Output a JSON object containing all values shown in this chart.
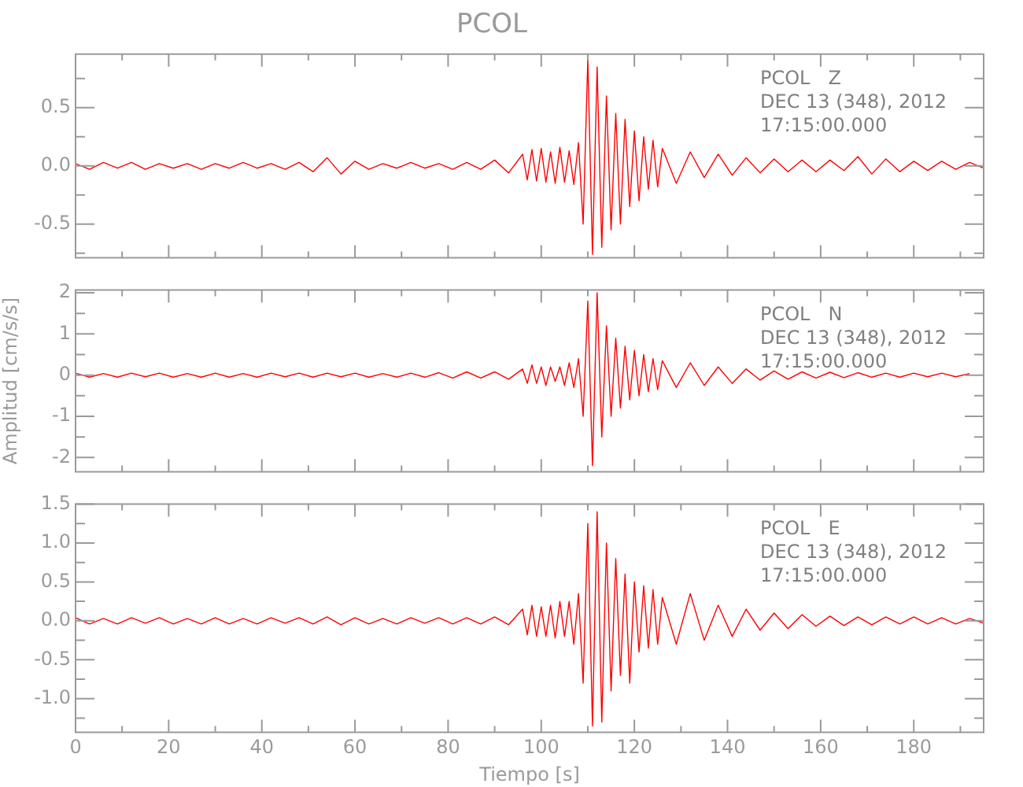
{
  "chart_data": [
    {
      "type": "line",
      "title": "PCOL",
      "tick_labels": "y",
      "annotations": [
        "PCOL   Z",
        "DEC 13 (348), 2012",
        "17:15:00.000"
      ],
      "x": [
        0,
        3,
        6,
        9,
        12,
        15,
        18,
        21,
        24,
        27,
        30,
        33,
        36,
        39,
        42,
        45,
        48,
        51,
        54,
        57,
        60,
        63,
        66,
        69,
        72,
        75,
        78,
        81,
        84,
        87,
        90,
        93,
        96,
        97,
        98,
        99,
        100,
        101,
        102,
        103,
        104,
        105,
        106,
        107,
        108,
        109,
        110,
        111,
        112,
        113,
        114,
        115,
        116,
        117,
        118,
        119,
        120,
        121,
        122,
        123,
        124,
        125,
        126,
        129,
        132,
        135,
        138,
        141,
        144,
        147,
        150,
        153,
        156,
        159,
        162,
        165,
        168,
        171,
        174,
        177,
        180,
        183,
        186,
        189,
        192,
        195
      ],
      "series": [
        {
          "color": "#ff0000",
          "values": [
            0.02,
            -0.03,
            0.03,
            -0.02,
            0.03,
            -0.03,
            0.02,
            -0.02,
            0.02,
            -0.03,
            0.02,
            -0.02,
            0.03,
            -0.02,
            0.02,
            -0.03,
            0.03,
            -0.05,
            0.07,
            -0.07,
            0.04,
            -0.03,
            0.02,
            -0.02,
            0.03,
            -0.02,
            0.02,
            -0.03,
            0.03,
            -0.03,
            0.05,
            -0.06,
            0.1,
            -0.12,
            0.14,
            -0.13,
            0.15,
            -0.14,
            0.12,
            -0.15,
            0.16,
            -0.14,
            0.13,
            -0.16,
            0.2,
            -0.5,
            0.92,
            -0.76,
            0.85,
            -0.7,
            0.6,
            -0.55,
            0.45,
            -0.5,
            0.4,
            -0.35,
            0.3,
            -0.3,
            0.25,
            -0.2,
            0.22,
            -0.18,
            0.15,
            -0.15,
            0.12,
            -0.1,
            0.1,
            -0.08,
            0.07,
            -0.06,
            0.06,
            -0.05,
            0.05,
            -0.05,
            0.05,
            -0.04,
            0.08,
            -0.07,
            0.06,
            -0.05,
            0.04,
            -0.04,
            0.04,
            -0.03,
            0.03,
            -0.02
          ]
        }
      ],
      "xlim": [
        0,
        195
      ],
      "xticks": [
        0,
        {
          "value": 10,
          "label": null
        },
        20,
        {
          "value": 30,
          "label": null
        },
        40,
        {
          "value": 50,
          "label": null
        },
        60,
        {
          "value": 70,
          "label": null
        },
        80,
        {
          "value": 90,
          "label": null
        },
        100,
        {
          "value": 110,
          "label": null
        },
        120,
        {
          "value": 130,
          "label": null
        },
        140,
        {
          "value": 150,
          "label": null
        },
        160,
        {
          "value": 170,
          "label": null
        },
        180,
        {
          "value": 190,
          "label": null
        }
      ],
      "ylim": [
        -0.79,
        0.96
      ],
      "yticks": [
        {
          "value": -0.75,
          "label": null
        },
        -0.5,
        {
          "value": -0.25,
          "label": null
        },
        {
          "value": 0,
          "label": "0.0"
        },
        {
          "value": 0.25,
          "label": null
        },
        0.5,
        {
          "value": 0.75,
          "label": null
        }
      ]
    },
    {
      "type": "line",
      "ylabel": "Amplitud [cm/s/s]",
      "tick_labels": "y",
      "annotations": [
        "PCOL   N",
        "DEC 13 (348), 2012",
        "17:15:00.000"
      ],
      "x": [
        0,
        3,
        6,
        9,
        12,
        15,
        18,
        21,
        24,
        27,
        30,
        33,
        36,
        39,
        42,
        45,
        48,
        51,
        54,
        57,
        60,
        63,
        66,
        69,
        72,
        75,
        78,
        81,
        84,
        87,
        90,
        93,
        96,
        97,
        98,
        99,
        100,
        101,
        102,
        103,
        104,
        105,
        106,
        107,
        108,
        109,
        110,
        111,
        112,
        113,
        114,
        115,
        116,
        117,
        118,
        119,
        120,
        121,
        122,
        123,
        124,
        125,
        126,
        129,
        132,
        135,
        138,
        141,
        144,
        147,
        150,
        153,
        156,
        159,
        162,
        165,
        168,
        171,
        174,
        177,
        180,
        183,
        186,
        189,
        192
      ],
      "series": [
        {
          "color": "#ff0000",
          "values": [
            0.05,
            -0.05,
            0.04,
            -0.05,
            0.05,
            -0.04,
            0.05,
            -0.05,
            0.04,
            -0.05,
            0.05,
            -0.05,
            0.04,
            -0.05,
            0.05,
            -0.04,
            0.05,
            -0.05,
            0.05,
            -0.04,
            0.05,
            -0.05,
            0.04,
            -0.05,
            0.05,
            -0.05,
            0.06,
            -0.07,
            0.08,
            -0.07,
            0.08,
            -0.1,
            0.15,
            -0.2,
            0.25,
            -0.2,
            0.2,
            -0.25,
            0.2,
            -0.15,
            0.2,
            -0.25,
            0.3,
            -0.3,
            0.4,
            -1.0,
            1.8,
            -2.2,
            2.0,
            -1.5,
            1.2,
            -1.0,
            0.9,
            -0.8,
            0.7,
            -0.6,
            0.6,
            -0.5,
            0.5,
            -0.4,
            0.4,
            -0.35,
            0.35,
            -0.3,
            0.3,
            -0.25,
            0.2,
            -0.2,
            0.15,
            -0.12,
            0.1,
            -0.1,
            0.08,
            -0.07,
            0.07,
            -0.06,
            0.06,
            -0.05,
            0.05,
            -0.05,
            0.05,
            -0.04,
            0.05,
            -0.04,
            0.04
          ]
        }
      ],
      "xlim": [
        0,
        195
      ],
      "xticks": [
        0,
        {
          "value": 10,
          "label": null
        },
        20,
        {
          "value": 30,
          "label": null
        },
        40,
        {
          "value": 50,
          "label": null
        },
        60,
        {
          "value": 70,
          "label": null
        },
        80,
        {
          "value": 90,
          "label": null
        },
        100,
        {
          "value": 110,
          "label": null
        },
        120,
        {
          "value": 130,
          "label": null
        },
        140,
        {
          "value": 150,
          "label": null
        },
        160,
        {
          "value": 170,
          "label": null
        },
        180,
        {
          "value": 190,
          "label": null
        }
      ],
      "ylim": [
        -2.35,
        2.07
      ],
      "yticks": [
        -2,
        {
          "value": -1.5,
          "label": null
        },
        -1,
        {
          "value": -0.5,
          "label": null
        },
        0,
        {
          "value": 0.5,
          "label": null
        },
        1,
        {
          "value": 1.5,
          "label": null
        },
        2
      ]
    },
    {
      "type": "line",
      "xlabel": "Tiempo [s]",
      "annotations": [
        "PCOL   E",
        "DEC 13 (348), 2012",
        "17:15:00.000"
      ],
      "x": [
        0,
        3,
        6,
        9,
        12,
        15,
        18,
        21,
        24,
        27,
        30,
        33,
        36,
        39,
        42,
        45,
        48,
        51,
        54,
        57,
        60,
        63,
        66,
        69,
        72,
        75,
        78,
        81,
        84,
        87,
        90,
        93,
        96,
        97,
        98,
        99,
        100,
        101,
        102,
        103,
        104,
        105,
        106,
        107,
        108,
        109,
        110,
        111,
        112,
        113,
        114,
        115,
        116,
        117,
        118,
        119,
        120,
        121,
        122,
        123,
        124,
        125,
        126,
        129,
        132,
        135,
        138,
        141,
        144,
        147,
        150,
        153,
        156,
        159,
        162,
        165,
        168,
        171,
        174,
        177,
        180,
        183,
        186,
        189,
        192,
        195
      ],
      "series": [
        {
          "color": "#ff0000",
          "values": [
            0.04,
            -0.04,
            0.03,
            -0.04,
            0.04,
            -0.03,
            0.04,
            -0.04,
            0.03,
            -0.04,
            0.04,
            -0.04,
            0.03,
            -0.04,
            0.04,
            -0.03,
            0.04,
            -0.04,
            0.05,
            -0.05,
            0.04,
            -0.04,
            0.03,
            -0.04,
            0.04,
            -0.03,
            0.04,
            -0.04,
            0.04,
            -0.04,
            0.05,
            -0.05,
            0.15,
            -0.18,
            0.2,
            -0.2,
            0.18,
            -0.2,
            0.2,
            -0.22,
            0.25,
            -0.2,
            0.25,
            -0.3,
            0.35,
            -0.8,
            1.25,
            -1.35,
            1.4,
            -1.3,
            1.0,
            -0.9,
            0.8,
            -0.7,
            0.6,
            -0.8,
            0.5,
            -0.4,
            0.45,
            -0.35,
            0.4,
            -0.3,
            0.3,
            -0.3,
            0.35,
            -0.25,
            0.2,
            -0.2,
            0.15,
            -0.12,
            0.1,
            -0.1,
            0.08,
            -0.07,
            0.06,
            -0.06,
            0.05,
            -0.05,
            0.05,
            -0.04,
            0.05,
            -0.04,
            0.04,
            -0.04,
            0.03,
            -0.03
          ]
        }
      ],
      "xlim": [
        0,
        195
      ],
      "xticks": [
        0,
        {
          "value": 10,
          "label": null
        },
        20,
        {
          "value": 30,
          "label": null
        },
        40,
        {
          "value": 50,
          "label": null
        },
        60,
        {
          "value": 70,
          "label": null
        },
        80,
        {
          "value": 90,
          "label": null
        },
        100,
        {
          "value": 110,
          "label": null
        },
        120,
        {
          "value": 130,
          "label": null
        },
        140,
        {
          "value": 150,
          "label": null
        },
        160,
        {
          "value": 170,
          "label": null
        },
        180,
        {
          "value": 190,
          "label": null
        }
      ],
      "ylim": [
        -1.43,
        1.5
      ],
      "yticks": [
        {
          "value": -1.25,
          "label": null
        },
        {
          "value": -1,
          "label": "-1.0"
        },
        {
          "value": -0.75,
          "label": null
        },
        -0.5,
        {
          "value": -0.25,
          "label": null
        },
        {
          "value": 0,
          "label": "0.0"
        },
        {
          "value": 0.25,
          "label": null
        },
        0.5,
        {
          "value": 0.75,
          "label": null
        },
        {
          "value": 1,
          "label": "1.0"
        },
        {
          "value": 1.25,
          "label": null
        },
        1.5
      ]
    }
  ]
}
